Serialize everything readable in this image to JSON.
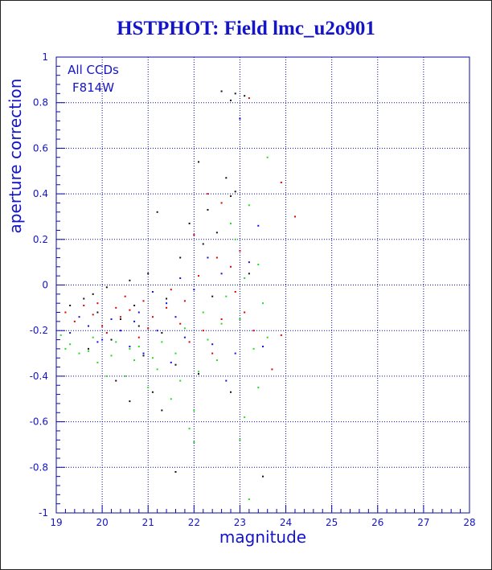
{
  "colors": {
    "frame": "#0a0aa0",
    "text": "#1414c8",
    "grid": "#0a0aa0",
    "black": "#111111",
    "red": "#e00000",
    "blue": "#1010e0",
    "green": "#22dd22"
  },
  "chart_data": {
    "type": "scatter",
    "title": "HSTPHOT: Field lmc_u2o901",
    "xlabel": "magnitude",
    "ylabel": "aperture correction",
    "xlim": [
      19,
      28
    ],
    "ylim": [
      -1,
      1
    ],
    "x_ticks": [
      "19",
      "20",
      "21",
      "22",
      "23",
      "24",
      "25",
      "26",
      "27",
      "28"
    ],
    "y_ticks": [
      "-1",
      "-0.8",
      "-0.6",
      "-0.4",
      "-0.2",
      "0",
      "0.2",
      "0.4",
      "0.6",
      "0.8",
      "1"
    ],
    "grid": true,
    "annotation": [
      "All CCDs",
      "F814W"
    ],
    "series": [
      {
        "color": "black",
        "points": [
          [
            22.6,
            0.85
          ],
          [
            22.9,
            0.84
          ],
          [
            23.1,
            0.83
          ],
          [
            22.8,
            0.81
          ],
          [
            22.1,
            0.54
          ],
          [
            22.7,
            0.47
          ],
          [
            22.9,
            0.41
          ],
          [
            22.8,
            0.39
          ],
          [
            22.3,
            0.33
          ],
          [
            21.2,
            0.32
          ],
          [
            21.9,
            0.27
          ],
          [
            22.5,
            0.23
          ],
          [
            22.2,
            0.18
          ],
          [
            21.7,
            0.12
          ],
          [
            21.0,
            0.05
          ],
          [
            20.6,
            0.02
          ],
          [
            20.1,
            -0.01
          ],
          [
            19.6,
            -0.06
          ],
          [
            19.3,
            -0.09
          ],
          [
            19.9,
            -0.12
          ],
          [
            20.4,
            -0.15
          ],
          [
            20.8,
            -0.18
          ],
          [
            21.3,
            -0.21
          ],
          [
            20.2,
            -0.24
          ],
          [
            19.7,
            -0.28
          ],
          [
            20.9,
            -0.31
          ],
          [
            21.6,
            -0.35
          ],
          [
            20.3,
            -0.42
          ],
          [
            20.6,
            -0.51
          ],
          [
            21.1,
            -0.47
          ],
          [
            21.3,
            -0.55
          ],
          [
            22.8,
            -0.47
          ],
          [
            23.5,
            -0.84
          ],
          [
            21.6,
            -0.82
          ],
          [
            22.1,
            -0.39
          ],
          [
            23.2,
            0.05
          ],
          [
            22.4,
            -0.05
          ],
          [
            21.4,
            -0.06
          ],
          [
            19.8,
            -0.04
          ],
          [
            20.7,
            -0.09
          ]
        ]
      },
      {
        "color": "red",
        "points": [
          [
            23.2,
            0.82
          ],
          [
            23.9,
            0.45
          ],
          [
            24.2,
            0.3
          ],
          [
            22.6,
            0.36
          ],
          [
            22.3,
            0.4
          ],
          [
            23.0,
            0.15
          ],
          [
            22.8,
            0.08
          ],
          [
            22.1,
            0.04
          ],
          [
            21.5,
            -0.02
          ],
          [
            20.9,
            -0.07
          ],
          [
            20.3,
            -0.1
          ],
          [
            19.8,
            -0.13
          ],
          [
            19.4,
            -0.16
          ],
          [
            20.0,
            -0.18
          ],
          [
            20.6,
            -0.11
          ],
          [
            21.1,
            -0.14
          ],
          [
            21.7,
            -0.17
          ],
          [
            22.2,
            -0.2
          ],
          [
            22.6,
            -0.15
          ],
          [
            23.3,
            -0.2
          ],
          [
            23.9,
            -0.22
          ],
          [
            23.7,
            -0.37
          ],
          [
            22.4,
            -0.3
          ],
          [
            21.9,
            -0.25
          ],
          [
            20.5,
            -0.05
          ],
          [
            19.6,
            -0.09
          ],
          [
            20.1,
            -0.21
          ],
          [
            20.8,
            -0.23
          ],
          [
            21.4,
            -0.1
          ],
          [
            22.9,
            -0.03
          ],
          [
            19.2,
            -0.12
          ],
          [
            19.9,
            -0.08
          ],
          [
            20.4,
            -0.14
          ],
          [
            21.0,
            -0.19
          ],
          [
            21.8,
            -0.07
          ],
          [
            22.5,
            0.12
          ],
          [
            22.0,
            0.22
          ],
          [
            23.1,
            -0.12
          ]
        ]
      },
      {
        "color": "blue",
        "points": [
          [
            23.0,
            0.73
          ],
          [
            23.4,
            0.26
          ],
          [
            23.2,
            0.1
          ],
          [
            22.6,
            0.05
          ],
          [
            22.0,
            -0.02
          ],
          [
            21.4,
            -0.08
          ],
          [
            20.8,
            -0.12
          ],
          [
            20.2,
            -0.15
          ],
          [
            19.7,
            -0.18
          ],
          [
            19.3,
            -0.21
          ],
          [
            20.0,
            -0.24
          ],
          [
            20.6,
            -0.27
          ],
          [
            21.2,
            -0.2
          ],
          [
            21.8,
            -0.23
          ],
          [
            22.4,
            -0.26
          ],
          [
            22.9,
            -0.3
          ],
          [
            23.5,
            -0.27
          ],
          [
            22.7,
            -0.42
          ],
          [
            21.5,
            -0.34
          ],
          [
            20.9,
            -0.3
          ],
          [
            20.4,
            -0.2
          ],
          [
            19.9,
            -0.25
          ],
          [
            21.1,
            -0.03
          ],
          [
            21.7,
            0.03
          ],
          [
            22.3,
            0.12
          ],
          [
            19.5,
            -0.14
          ],
          [
            20.7,
            -0.16
          ],
          [
            21.6,
            -0.14
          ]
        ]
      },
      {
        "color": "green",
        "points": [
          [
            23.6,
            0.56
          ],
          [
            23.2,
            0.35
          ],
          [
            22.8,
            0.27
          ],
          [
            23.4,
            0.09
          ],
          [
            23.1,
            0.03
          ],
          [
            22.7,
            -0.05
          ],
          [
            23.0,
            -0.15
          ],
          [
            23.6,
            -0.23
          ],
          [
            23.3,
            -0.28
          ],
          [
            22.5,
            -0.33
          ],
          [
            22.1,
            -0.38
          ],
          [
            21.7,
            -0.42
          ],
          [
            21.2,
            -0.37
          ],
          [
            20.7,
            -0.33
          ],
          [
            20.2,
            -0.31
          ],
          [
            19.7,
            -0.29
          ],
          [
            19.3,
            -0.26
          ],
          [
            19.1,
            -0.22
          ],
          [
            19.9,
            -0.34
          ],
          [
            20.5,
            -0.4
          ],
          [
            21.0,
            -0.45
          ],
          [
            21.5,
            -0.5
          ],
          [
            22.0,
            -0.55
          ],
          [
            21.9,
            -0.63
          ],
          [
            22.0,
            -0.69
          ],
          [
            23.2,
            -0.94
          ],
          [
            23.0,
            -0.68
          ],
          [
            23.4,
            -0.45
          ],
          [
            23.1,
            -0.58
          ],
          [
            22.6,
            -0.17
          ],
          [
            22.2,
            -0.12
          ],
          [
            21.8,
            -0.19
          ],
          [
            21.3,
            -0.25
          ],
          [
            20.8,
            -0.27
          ],
          [
            20.3,
            -0.25
          ],
          [
            19.8,
            -0.23
          ],
          [
            19.5,
            -0.3
          ],
          [
            20.1,
            -0.4
          ],
          [
            20.6,
            -0.28
          ],
          [
            21.1,
            -0.32
          ],
          [
            21.6,
            -0.3
          ],
          [
            22.3,
            -0.24
          ],
          [
            22.9,
            0.2
          ],
          [
            23.5,
            -0.08
          ],
          [
            19.2,
            -0.28
          ]
        ]
      }
    ]
  }
}
